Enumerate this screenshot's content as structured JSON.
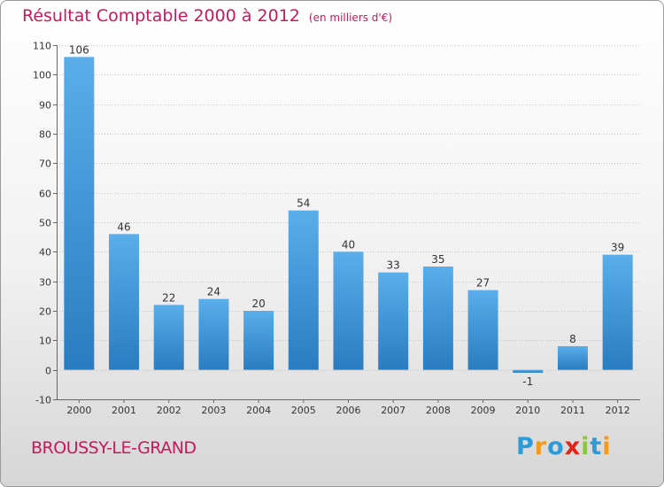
{
  "chart_data": {
    "type": "bar",
    "title": "Résultat Comptable 2000 à 2012",
    "subtitle": "(en milliers d'€)",
    "categories": [
      "2000",
      "2001",
      "2002",
      "2003",
      "2004",
      "2005",
      "2006",
      "2007",
      "2008",
      "2009",
      "2010",
      "2011",
      "2012"
    ],
    "values": [
      106,
      46,
      22,
      24,
      20,
      54,
      40,
      33,
      35,
      27,
      -1,
      8,
      39
    ],
    "ylim": [
      -10,
      110
    ],
    "yticks": [
      -10,
      0,
      10,
      20,
      30,
      40,
      50,
      60,
      70,
      80,
      90,
      100,
      110
    ],
    "grid": true,
    "xlabel": "",
    "ylabel": ""
  },
  "commune": "BROUSSY-LE-GRAND",
  "logo": {
    "letters": [
      "P",
      "r",
      "o",
      "x",
      "i",
      "t",
      "i"
    ],
    "colors": [
      "#2e9ad8",
      "#f39a1c",
      "#2e9ad8",
      "#e2231a",
      "#8cc63f",
      "#2e9ad8",
      "#f39a1c"
    ]
  },
  "colors": {
    "bar_top": "#5aaeea",
    "bar_bottom": "#2a7cc0",
    "title": "#c8185e"
  }
}
